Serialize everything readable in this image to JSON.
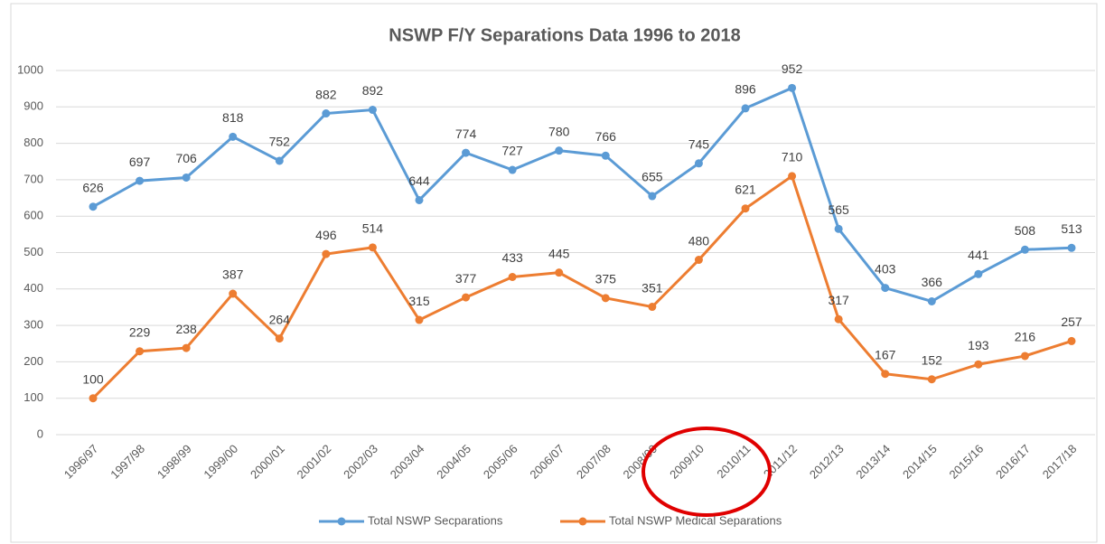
{
  "chart_data": {
    "type": "line",
    "title": "NSWP F/Y Separations Data 1996 to 2018",
    "categories": [
      "1996/97",
      "1997/98",
      "1998/99",
      "1999/00",
      "2000/01",
      "2001/02",
      "2002/03",
      "2003/04",
      "2004/05",
      "2005/06",
      "2006/07",
      "2007/08",
      "2008/09",
      "2009/10",
      "2010/11",
      "2011/12",
      "2012/13",
      "2013/14",
      "2014/15",
      "2015/16",
      "2016/17",
      "2017/18"
    ],
    "series": [
      {
        "name": "Total NSWP Secparations",
        "color": "#5b9bd5",
        "values": [
          626,
          697,
          706,
          818,
          752,
          882,
          892,
          644,
          774,
          727,
          780,
          766,
          655,
          745,
          896,
          952,
          565,
          403,
          366,
          441,
          508,
          513
        ]
      },
      {
        "name": "Total NSWP Medical Separations",
        "color": "#ed7d31",
        "values": [
          100,
          229,
          238,
          387,
          264,
          496,
          514,
          315,
          377,
          433,
          445,
          375,
          351,
          480,
          621,
          710,
          317,
          167,
          152,
          193,
          216,
          257
        ]
      }
    ],
    "ylim": [
      0,
      1000
    ],
    "yticks": [
      0,
      100,
      200,
      300,
      400,
      500,
      600,
      700,
      800,
      900,
      1000
    ],
    "grid": true,
    "legend": "bottom"
  }
}
